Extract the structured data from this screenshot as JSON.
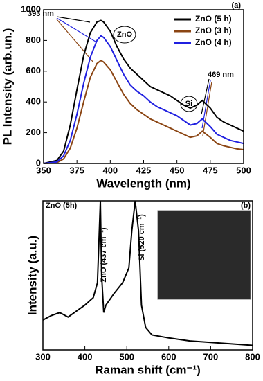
{
  "chart_data": [
    {
      "type": "line",
      "x_label": "Wavelength (nm)",
      "y_label": "PL Intensity (arb.un.)",
      "x": [
        350,
        360,
        365,
        370,
        375,
        380,
        385,
        390,
        393,
        395,
        400,
        405,
        410,
        415,
        420,
        425,
        430,
        435,
        440,
        445,
        450,
        455,
        460,
        465,
        469,
        475,
        480,
        485,
        490,
        495,
        500
      ],
      "series": [
        {
          "name": "ZnO (5 h)",
          "color": "#000000",
          "values": [
            0,
            20,
            80,
            250,
            480,
            700,
            850,
            920,
            930,
            920,
            860,
            760,
            680,
            620,
            580,
            540,
            500,
            480,
            460,
            440,
            410,
            380,
            360,
            380,
            410,
            360,
            300,
            270,
            250,
            230,
            210
          ]
        },
        {
          "name": "ZnO (3 h)",
          "color": "#8b4513",
          "values": [
            0,
            5,
            30,
            100,
            230,
            400,
            560,
            650,
            670,
            660,
            610,
            530,
            450,
            390,
            350,
            320,
            290,
            270,
            250,
            230,
            210,
            190,
            170,
            180,
            210,
            170,
            130,
            115,
            105,
            95,
            90
          ]
        },
        {
          "name": "ZnO (4 h)",
          "color": "#2020e0",
          "values": [
            0,
            10,
            50,
            150,
            320,
            520,
            690,
            800,
            830,
            820,
            760,
            670,
            580,
            510,
            470,
            440,
            400,
            370,
            350,
            330,
            310,
            280,
            250,
            260,
            290,
            240,
            190,
            170,
            150,
            140,
            130
          ]
        }
      ],
      "xlim": [
        350,
        500
      ],
      "xticks": [
        350,
        375,
        400,
        425,
        450,
        475,
        500
      ],
      "ylim": [
        0,
        1000
      ],
      "yticks": [
        0,
        200,
        400,
        600,
        800,
        1000
      ],
      "legend": "upper right",
      "annotations": [
        "393 nm",
        "ZnO",
        "Si",
        "469 nm",
        "(a)"
      ]
    },
    {
      "type": "line",
      "x_label": "Raman shift (cm⁻¹)",
      "y_label": "Intensity (a.u.)",
      "x": [
        300,
        320,
        340,
        360,
        380,
        400,
        420,
        430,
        437,
        440,
        445,
        450,
        470,
        490,
        505,
        512,
        520,
        528,
        535,
        545,
        560,
        600,
        650,
        700,
        750,
        800
      ],
      "series": [
        {
          "color": "#000000",
          "values": [
            20,
            23,
            25,
            22,
            26,
            30,
            35,
            45,
            100,
            50,
            25,
            30,
            38,
            45,
            55,
            80,
            100,
            80,
            30,
            15,
            10,
            8,
            6,
            5,
            4,
            3
          ]
        }
      ],
      "xlim": [
        300,
        800
      ],
      "xticks": [
        300,
        400,
        500,
        600,
        700,
        800
      ],
      "ylim": [
        0,
        100
      ],
      "annotations": [
        "ZnO (5h)",
        "ZnO (437 cm⁻¹)",
        "Si (520 cm⁻¹)",
        "(b)"
      ]
    }
  ]
}
